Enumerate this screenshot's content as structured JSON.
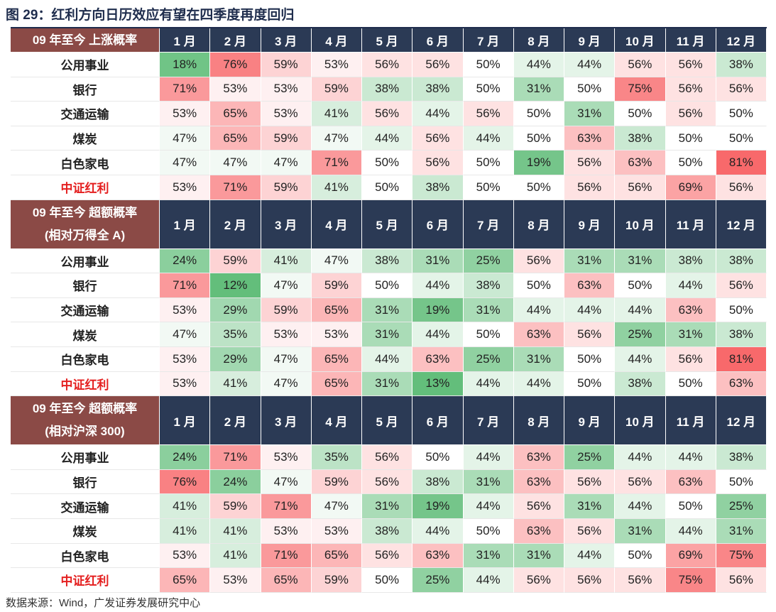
{
  "title": "图 29：红利方向日历效应有望在四季度再度回归",
  "blocks": [
    {
      "header": [
        "09 年至今  上涨概率"
      ],
      "months": [
        "1 月",
        "2 月",
        "3 月",
        "4 月",
        "5 月",
        "6 月",
        "7 月",
        "8 月",
        "9 月",
        "10 月",
        "11 月",
        "12 月"
      ],
      "rows": [
        {
          "label": "公用事业",
          "cells": [
            "18%",
            "76%",
            "59%",
            "53%",
            "56%",
            "56%",
            "50%",
            "44%",
            "44%",
            "56%",
            "56%",
            "38%"
          ]
        },
        {
          "label": "银行",
          "cells": [
            "71%",
            "53%",
            "53%",
            "59%",
            "38%",
            "38%",
            "50%",
            "31%",
            "50%",
            "75%",
            "56%",
            "56%"
          ]
        },
        {
          "label": "交通运输",
          "cells": [
            "53%",
            "65%",
            "53%",
            "41%",
            "56%",
            "44%",
            "56%",
            "50%",
            "31%",
            "50%",
            "56%",
            "50%"
          ]
        },
        {
          "label": "煤炭",
          "cells": [
            "47%",
            "65%",
            "59%",
            "47%",
            "44%",
            "56%",
            "44%",
            "50%",
            "63%",
            "38%",
            "50%",
            "50%"
          ]
        },
        {
          "label": "白色家电",
          "cells": [
            "47%",
            "47%",
            "47%",
            "71%",
            "50%",
            "56%",
            "50%",
            "19%",
            "56%",
            "63%",
            "50%",
            "81%"
          ]
        },
        {
          "label": "中证红利",
          "cells": [
            "53%",
            "71%",
            "59%",
            "41%",
            "50%",
            "38%",
            "50%",
            "50%",
            "56%",
            "56%",
            "69%",
            "56%"
          ]
        }
      ]
    },
    {
      "header": [
        "09 年至今  超额概率",
        "(相对万得全 A)"
      ],
      "months": [
        "1 月",
        "2 月",
        "3 月",
        "4 月",
        "5 月",
        "6 月",
        "7 月",
        "8 月",
        "9 月",
        "10 月",
        "11 月",
        "12 月"
      ],
      "rows": [
        {
          "label": "公用事业",
          "cells": [
            "24%",
            "59%",
            "41%",
            "47%",
            "38%",
            "31%",
            "25%",
            "56%",
            "31%",
            "31%",
            "38%",
            "38%"
          ]
        },
        {
          "label": "银行",
          "cells": [
            "71%",
            "12%",
            "47%",
            "59%",
            "50%",
            "44%",
            "38%",
            "50%",
            "63%",
            "50%",
            "44%",
            "56%"
          ]
        },
        {
          "label": "交通运输",
          "cells": [
            "53%",
            "29%",
            "59%",
            "65%",
            "31%",
            "19%",
            "31%",
            "44%",
            "44%",
            "44%",
            "63%",
            "50%"
          ]
        },
        {
          "label": "煤炭",
          "cells": [
            "47%",
            "35%",
            "53%",
            "53%",
            "31%",
            "44%",
            "50%",
            "63%",
            "56%",
            "25%",
            "31%",
            "38%"
          ]
        },
        {
          "label": "白色家电",
          "cells": [
            "53%",
            "29%",
            "47%",
            "65%",
            "44%",
            "63%",
            "25%",
            "31%",
            "50%",
            "44%",
            "56%",
            "81%"
          ]
        },
        {
          "label": "中证红利",
          "cells": [
            "53%",
            "41%",
            "47%",
            "65%",
            "31%",
            "13%",
            "44%",
            "44%",
            "50%",
            "38%",
            "50%",
            "63%"
          ]
        }
      ]
    },
    {
      "header": [
        "09 年至今  超额概率",
        "(相对沪深 300)"
      ],
      "months": [
        "1 月",
        "2 月",
        "3 月",
        "4 月",
        "5 月",
        "6 月",
        "7 月",
        "8 月",
        "9 月",
        "10 月",
        "11 月",
        "12 月"
      ],
      "rows": [
        {
          "label": "公用事业",
          "cells": [
            "24%",
            "71%",
            "53%",
            "35%",
            "56%",
            "50%",
            "44%",
            "63%",
            "25%",
            "44%",
            "44%",
            "38%"
          ]
        },
        {
          "label": "银行",
          "cells": [
            "76%",
            "24%",
            "47%",
            "59%",
            "56%",
            "38%",
            "31%",
            "63%",
            "56%",
            "56%",
            "63%",
            "50%"
          ]
        },
        {
          "label": "交通运输",
          "cells": [
            "41%",
            "59%",
            "71%",
            "47%",
            "31%",
            "19%",
            "44%",
            "56%",
            "31%",
            "44%",
            "50%",
            "25%"
          ]
        },
        {
          "label": "煤炭",
          "cells": [
            "41%",
            "41%",
            "53%",
            "53%",
            "38%",
            "44%",
            "50%",
            "63%",
            "56%",
            "31%",
            "44%",
            "31%"
          ]
        },
        {
          "label": "白色家电",
          "cells": [
            "53%",
            "41%",
            "71%",
            "65%",
            "56%",
            "63%",
            "31%",
            "31%",
            "44%",
            "50%",
            "69%",
            "75%"
          ]
        },
        {
          "label": "中证红利",
          "cells": [
            "65%",
            "53%",
            "65%",
            "59%",
            "50%",
            "25%",
            "44%",
            "56%",
            "56%",
            "56%",
            "75%",
            "56%"
          ]
        }
      ]
    }
  ],
  "source": "数据来源：Wind，广发证券发展研究中心"
}
